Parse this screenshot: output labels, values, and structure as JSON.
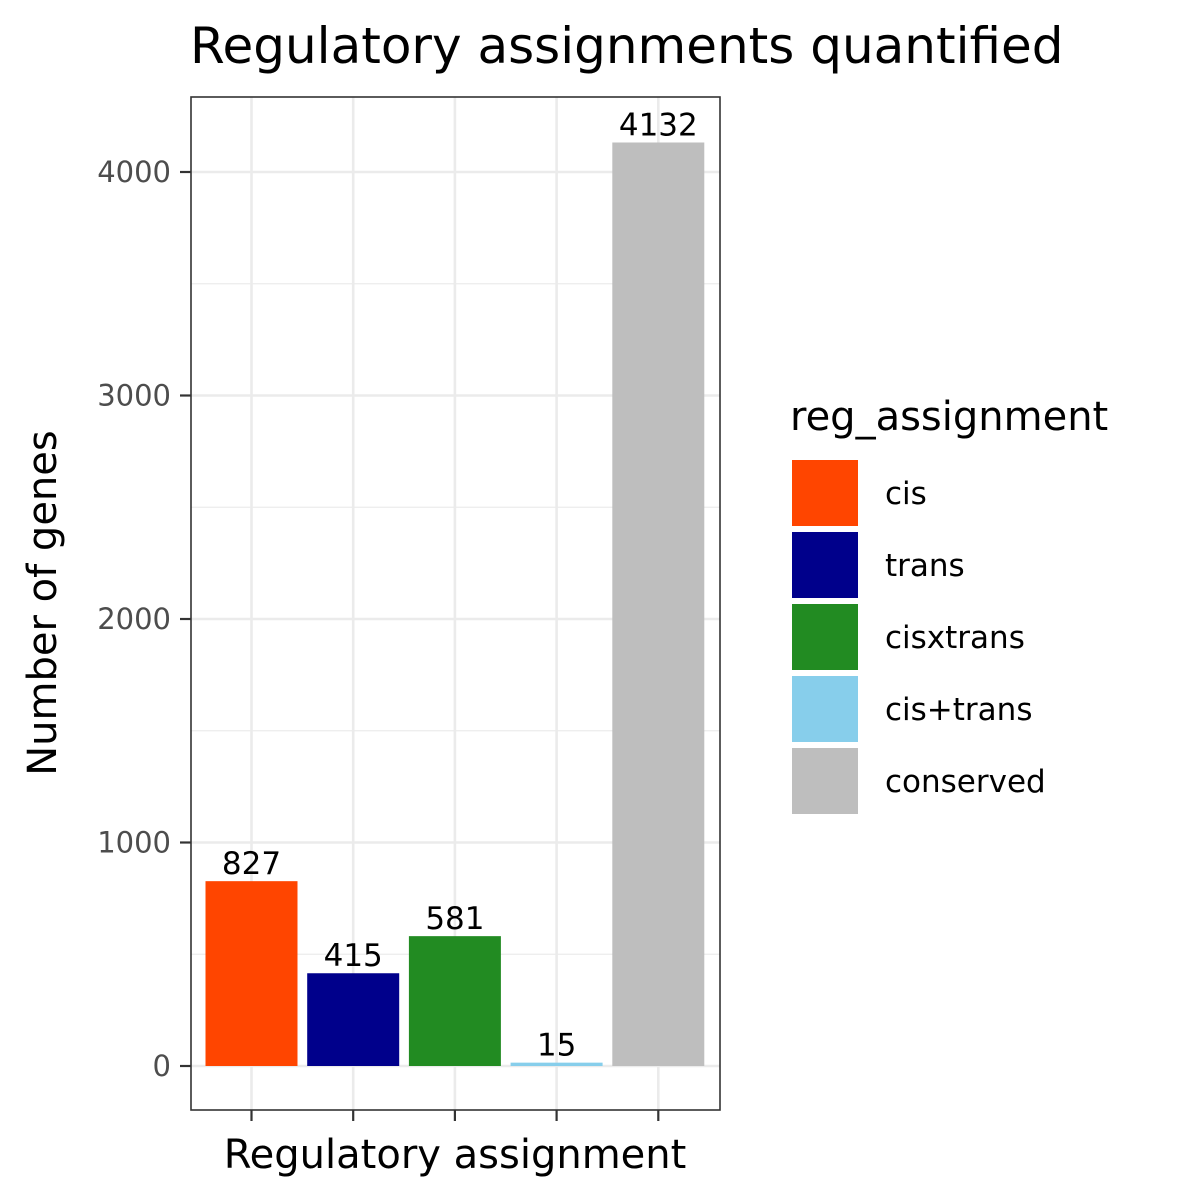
{
  "chart_data": {
    "type": "bar",
    "title": "Regulatory assignments quantified",
    "xlabel": "Regulatory assignment",
    "ylabel": "Number of genes",
    "categories": [
      "cis",
      "trans",
      "cisxtrans",
      "cis+trans",
      "conserved"
    ],
    "values": [
      827,
      415,
      581,
      15,
      4132
    ],
    "data_labels": [
      "827",
      "415",
      "581",
      "15",
      "4132"
    ],
    "colors": [
      "#FF4500",
      "#00008B",
      "#228B22",
      "#87CEEB",
      "#BEBEBE"
    ],
    "ylim": [
      -200,
      4330
    ],
    "y_ticks": [
      0,
      1000,
      2000,
      3000,
      4000
    ],
    "y_tick_labels": [
      "0",
      "1000",
      "2000",
      "3000",
      "4000"
    ],
    "x_tick_labels_shown": false,
    "grid": true,
    "theme": "bw",
    "legend": {
      "title": "reg_assignment",
      "position": "right",
      "entries": [
        "cis",
        "trans",
        "cisxtrans",
        "cis+trans",
        "conserved"
      ]
    }
  }
}
